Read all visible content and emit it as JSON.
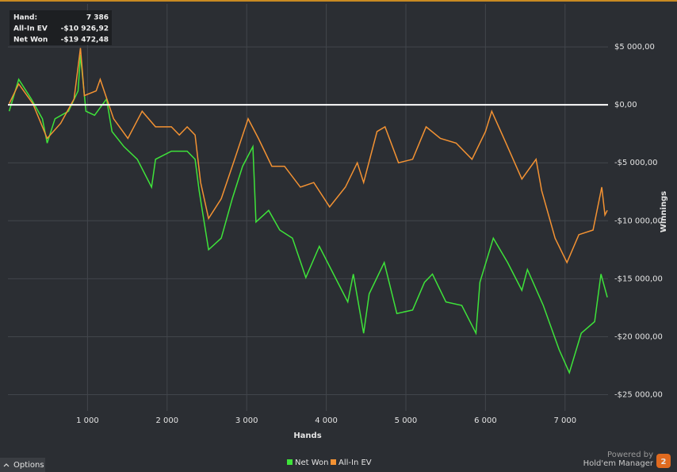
{
  "chart_data": {
    "type": "line",
    "x_label": "Hands",
    "y_label": "Winnings",
    "xlim": [
      0,
      7540
    ],
    "xticks": [
      {
        "value": 1000,
        "label": "1 000"
      },
      {
        "value": 2000,
        "label": "2 000"
      },
      {
        "value": 3000,
        "label": "3 000"
      },
      {
        "value": 4000,
        "label": "4 000"
      },
      {
        "value": 5000,
        "label": "5 000"
      },
      {
        "value": 6000,
        "label": "6 000"
      },
      {
        "value": 7000,
        "label": "7 000"
      }
    ],
    "ylim": [
      -26400,
      8700
    ],
    "yticks": [
      {
        "value": 5000,
        "label": "$5 000,00"
      },
      {
        "value": 0,
        "label": "$0,00"
      },
      {
        "value": -5000,
        "label": "-$5 000,00"
      },
      {
        "value": -10000,
        "label": "-$10 000,00"
      },
      {
        "value": -15000,
        "label": "-$15 000,00"
      },
      {
        "value": -20000,
        "label": "-$20 000,00"
      },
      {
        "value": -25000,
        "label": "-$25 000,00"
      }
    ],
    "grid": true,
    "zero_line": true,
    "zero_line_color": "#ffffff",
    "series": [
      {
        "name": "Net Won",
        "color": "#3ee33a",
        "x": [
          16,
          135,
          294,
          433,
          493,
          592,
          761,
          881,
          911,
          980,
          1089,
          1239,
          1308,
          1457,
          1626,
          1805,
          1855,
          2054,
          2252,
          2352,
          2402,
          2521,
          2680,
          2819,
          2948,
          3078,
          3117,
          3276,
          3415,
          3575,
          3743,
          3912,
          4091,
          4270,
          4340,
          4469,
          4539,
          4728,
          4887,
          5085,
          5234,
          5334,
          5503,
          5702,
          5881,
          5930,
          6099,
          6278,
          6457,
          6527,
          6726,
          6924,
          7054,
          7203,
          7372,
          7451,
          7531
        ],
        "values": [
          -550,
          2200,
          500,
          -1200,
          -3300,
          -1200,
          -550,
          1200,
          4300,
          -550,
          -900,
          500,
          -2300,
          -3600,
          -4700,
          -7100,
          -4700,
          -4000,
          -4000,
          -4700,
          -7400,
          -12500,
          -11500,
          -8100,
          -5300,
          -3600,
          -10100,
          -9100,
          -10800,
          -11500,
          -14900,
          -12200,
          -14600,
          -17000,
          -14600,
          -19700,
          -16300,
          -13600,
          -18000,
          -17700,
          -15300,
          -14600,
          -17000,
          -17300,
          -19700,
          -15300,
          -11500,
          -13600,
          -16000,
          -14200,
          -17300,
          -21100,
          -23100,
          -19700,
          -18700,
          -14600,
          -16600
        ]
      },
      {
        "name": "All-In EV",
        "color": "#f39233",
        "x": [
          16,
          135,
          314,
          493,
          662,
          831,
          911,
          960,
          1109,
          1159,
          1328,
          1507,
          1686,
          1855,
          2054,
          2153,
          2252,
          2352,
          2421,
          2521,
          2680,
          2849,
          3018,
          3147,
          3316,
          3475,
          3674,
          3843,
          4042,
          4240,
          4390,
          4469,
          4638,
          4738,
          4907,
          5085,
          5254,
          5433,
          5632,
          5831,
          6000,
          6079,
          6258,
          6457,
          6636,
          6706,
          6875,
          7024,
          7173,
          7352,
          7461,
          7501,
          7531
        ],
        "values": [
          100,
          1800,
          100,
          -2900,
          -1600,
          500,
          4900,
          800,
          1200,
          2200,
          -1200,
          -2900,
          -550,
          -1900,
          -1900,
          -2600,
          -1900,
          -2600,
          -6700,
          -9800,
          -8100,
          -4700,
          -1200,
          -2900,
          -5300,
          -5300,
          -7100,
          -6700,
          -8800,
          -7100,
          -5000,
          -6700,
          -2300,
          -1900,
          -5000,
          -4700,
          -1900,
          -2900,
          -3300,
          -4700,
          -2300,
          -550,
          -3300,
          -6400,
          -4700,
          -7400,
          -11500,
          -13600,
          -11200,
          -10800,
          -7100,
          -9500,
          -9100
        ]
      }
    ],
    "tooltip": [
      {
        "label": "Hand:",
        "value": "7 386"
      },
      {
        "label": "All-In EV",
        "value": "-$10 926,92"
      },
      {
        "label": "Net Won",
        "value": "-$19 472,48"
      }
    ]
  },
  "ui": {
    "options": "Options",
    "powered_by": "Powered by",
    "brand": "Hold'em Manager",
    "logo": "2"
  }
}
